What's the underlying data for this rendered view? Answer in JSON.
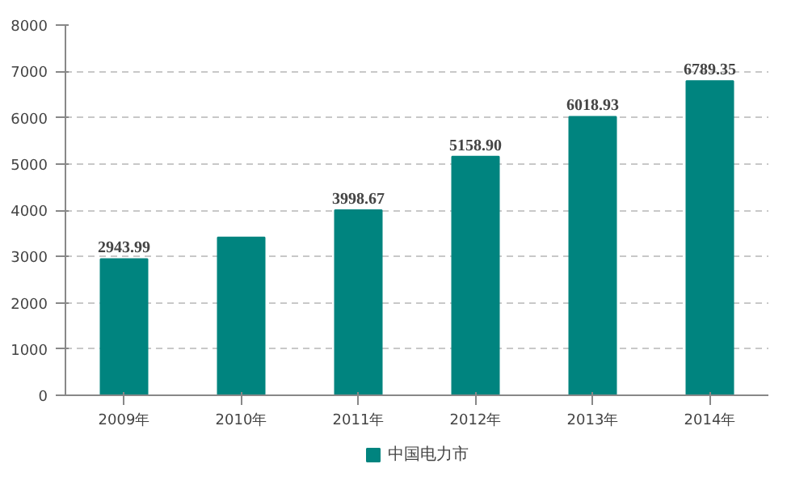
{
  "chart_data": {
    "type": "bar",
    "categories": [
      "2009年",
      "2010年",
      "2011年",
      "2012年",
      "2013年",
      "2014年"
    ],
    "series": [
      {
        "name": "中国电力市",
        "color": "#00847f",
        "values": [
          2943.99,
          3410,
          3998.67,
          5158.9,
          6018.93,
          6789.35
        ]
      }
    ],
    "value_labels": [
      "2943.99",
      null,
      "3998.67",
      "5158.90",
      "6018.93",
      "6789.35"
    ],
    "ylim": [
      0,
      8000
    ],
    "yticks": [
      0,
      1000,
      2000,
      3000,
      4000,
      5000,
      6000,
      7000,
      8000
    ],
    "grid": "y",
    "legend": "bottom"
  }
}
